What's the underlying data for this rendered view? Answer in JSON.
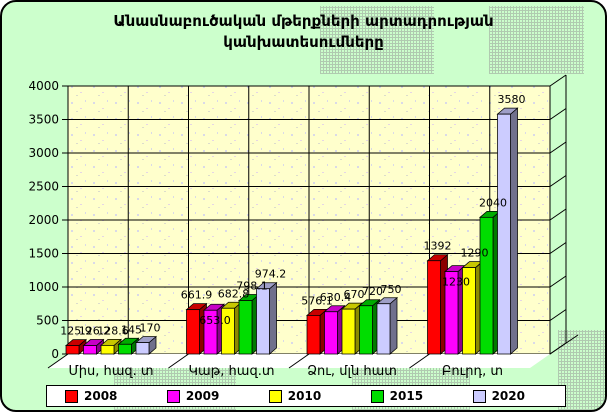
{
  "chart_data": {
    "type": "bar",
    "projection": "3d-clustered",
    "title": "Անասնաբուծական մթերքների արտադրության կանխատեսումները",
    "title_lines": [
      "Անասնաբուծական մթերքների արտադրության",
      "կանխատեսումները"
    ],
    "categories": [
      "Միս, հազ. տ",
      "Կաթ, հազ.տ",
      "Ձու, մլն հատ",
      "Բուրդ, տ"
    ],
    "series": [
      {
        "name": "2008",
        "color": "#FF0000",
        "values": [
          125.9,
          661.9,
          576.1,
          1392
        ],
        "labels": [
          "125.9",
          "661.9",
          "576.1",
          "1392"
        ]
      },
      {
        "name": "2009",
        "color": "#FF00FF",
        "values": [
          126.2,
          653.0,
          630.4,
          1230
        ],
        "labels": [
          "126.2",
          "653.0",
          "630.4",
          "1230"
        ]
      },
      {
        "name": "2010",
        "color": "#FFFF00",
        "values": [
          128.6,
          682.8,
          670,
          1290
        ],
        "labels": [
          "128.6",
          "682.8",
          "670",
          "1290"
        ]
      },
      {
        "name": "2015",
        "color": "#00DD00",
        "values": [
          145,
          798.1,
          720,
          2040
        ],
        "labels": [
          "145",
          "798.1",
          "720",
          "2040"
        ]
      },
      {
        "name": "2020",
        "color": "#CCCCFF",
        "values": [
          170,
          974.2,
          750,
          3580
        ],
        "labels": [
          "170",
          "974.2",
          "750",
          "3580"
        ]
      }
    ],
    "value_axis": {
      "min": 0,
      "max": 4000,
      "step": 500
    },
    "grid": true,
    "legend_position": "bottom",
    "wall_color": "#FFFFCC",
    "background_color": "#CCFFCC",
    "ylim": [
      0,
      4000
    ]
  }
}
